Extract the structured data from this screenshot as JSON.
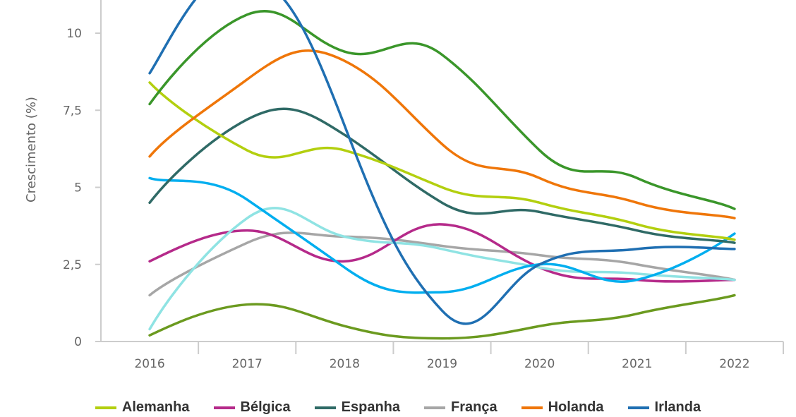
{
  "chart_data": {
    "type": "line",
    "title": "",
    "xlabel": "",
    "ylabel": "Crescimento (%)",
    "categories": [
      "2016",
      "2017",
      "2018",
      "2019",
      "2020",
      "2021",
      "2022"
    ],
    "yticks": [
      0,
      2.5,
      5,
      7.5,
      10
    ],
    "ytick_labels": [
      "0",
      "2,5",
      "5",
      "7,5",
      "10"
    ],
    "ylim": [
      0,
      11.07
    ],
    "grid": false,
    "legend_placement": "bottom",
    "series": [
      {
        "name": "Alemanha",
        "color": "#b3cf0f",
        "values": [
          8.4,
          6.2,
          6.2,
          5.0,
          4.5,
          3.8,
          3.3
        ]
      },
      {
        "name": "Bélgica",
        "color": "#b52a8a",
        "values": [
          2.6,
          3.6,
          2.6,
          3.8,
          2.4,
          2.0,
          2.0
        ]
      },
      {
        "name": "Espanha",
        "color": "#2f6a66",
        "values": [
          4.5,
          7.2,
          6.7,
          4.5,
          4.2,
          3.6,
          3.2
        ]
      },
      {
        "name": "França",
        "color": "#a6a6a6",
        "values": [
          1.5,
          3.2,
          3.4,
          3.1,
          2.8,
          2.5,
          2.0
        ]
      },
      {
        "name": "Holanda",
        "color": "#ef7609",
        "values": [
          6.0,
          8.5,
          9.1,
          6.4,
          5.3,
          4.5,
          4.0
        ]
      },
      {
        "name": "Irlanda",
        "color": "#1f6fb2",
        "values": [
          8.7,
          12.0,
          7.0,
          1.0,
          2.5,
          3.0,
          3.0
        ]
      },
      {
        "color": "#3a962a",
        "values": [
          7.7,
          10.6,
          9.4,
          9.3,
          6.2,
          5.3,
          4.3
        ]
      },
      {
        "color": "#00aeef",
        "values": [
          5.3,
          4.6,
          2.4,
          1.6,
          2.5,
          2.0,
          3.5
        ]
      },
      {
        "color": "#8fe3e3",
        "values": [
          0.4,
          4.0,
          3.4,
          3.0,
          2.4,
          2.2,
          2.0
        ]
      },
      {
        "color": "#6b9a1f",
        "values": [
          0.2,
          1.2,
          0.5,
          0.1,
          0.5,
          0.9,
          1.5
        ]
      }
    ]
  }
}
